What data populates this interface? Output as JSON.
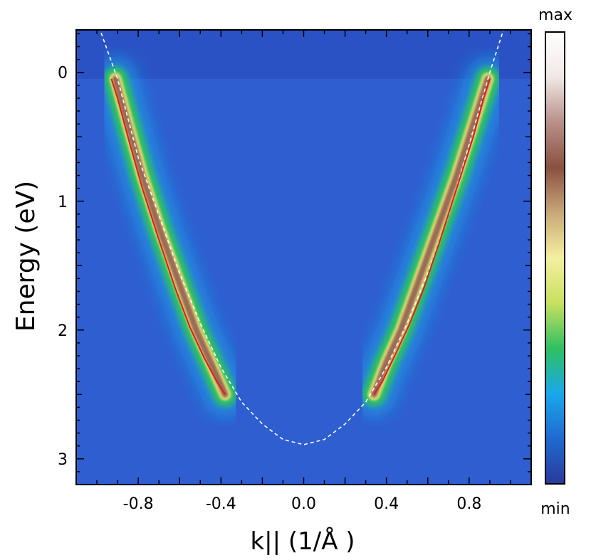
{
  "chart_data": {
    "type": "heatmap",
    "xlabel": "k||  (1/Å )",
    "ylabel": "Energy (eV)",
    "xlim": [
      -1.1,
      1.1
    ],
    "ylim": [
      3.2,
      -0.33
    ],
    "y_axis_inverted": true,
    "x_ticks": [
      -0.8,
      -0.4,
      0.0,
      0.4,
      0.8
    ],
    "x_tick_labels": [
      "-0.8",
      "-0.4",
      "0.0",
      "0.4",
      "0.8"
    ],
    "y_ticks": [
      0,
      1,
      2,
      3
    ],
    "y_tick_labels": [
      "0",
      "1",
      "2",
      "3"
    ],
    "colorbar": {
      "label_max": "max",
      "label_min": "min",
      "colors": [
        "#2a3a9a",
        "#1f6ad0",
        "#1aa8ea",
        "#2fc060",
        "#c8e060",
        "#f4f0a0",
        "#c8a878",
        "#8a5040",
        "#b89088",
        "#f0e8e6",
        "#ffffff"
      ]
    },
    "map_background_color": "#2f5ed0",
    "above_fermi_color": "#2a52c4",
    "fermi_level_energy": 0.05,
    "band_intensity_ridge": {
      "description_hidden": true,
      "left_branch": {
        "k": [
          -0.91,
          -0.85,
          -0.78,
          -0.7,
          -0.61,
          -0.52,
          -0.45,
          -0.38
        ],
        "energy": [
          0.05,
          0.4,
          0.8,
          1.2,
          1.6,
          2.0,
          2.25,
          2.5
        ]
      },
      "right_branch": {
        "k": [
          0.34,
          0.4,
          0.47,
          0.56,
          0.65,
          0.74,
          0.82,
          0.89
        ],
        "energy": [
          2.5,
          2.25,
          2.0,
          1.6,
          1.2,
          0.8,
          0.4,
          0.05
        ]
      }
    },
    "series": [
      {
        "style": "dashed",
        "color": "#ffffff",
        "k": [
          -1.0,
          -0.9,
          -0.8,
          -0.7,
          -0.6,
          -0.5,
          -0.4,
          -0.3,
          -0.2,
          -0.1,
          0.0,
          0.1,
          0.2,
          0.3,
          0.4,
          0.5,
          0.6,
          0.7,
          0.8,
          0.9,
          0.98
        ],
        "energy": [
          -0.4,
          0.05,
          0.66,
          1.11,
          1.56,
          1.95,
          2.29,
          2.56,
          2.73,
          2.85,
          2.89,
          2.85,
          2.73,
          2.56,
          2.29,
          1.95,
          1.56,
          1.11,
          0.56,
          0.0,
          -0.4
        ]
      },
      {
        "style": "solid",
        "color": "#e21a1a",
        "k": [
          -0.93,
          -0.9,
          -0.85,
          -0.78,
          -0.7,
          -0.62,
          -0.55,
          -0.48,
          -0.42,
          -0.38
        ],
        "energy": [
          0.05,
          0.2,
          0.5,
          0.9,
          1.3,
          1.68,
          1.98,
          2.22,
          2.4,
          2.5
        ]
      },
      {
        "style": "solid",
        "color": "#e21a1a",
        "k": [
          0.34,
          0.38,
          0.44,
          0.51,
          0.58,
          0.66,
          0.74,
          0.82,
          0.87,
          0.9
        ],
        "energy": [
          2.5,
          2.4,
          2.2,
          1.96,
          1.68,
          1.3,
          0.9,
          0.5,
          0.2,
          0.05
        ]
      }
    ]
  }
}
